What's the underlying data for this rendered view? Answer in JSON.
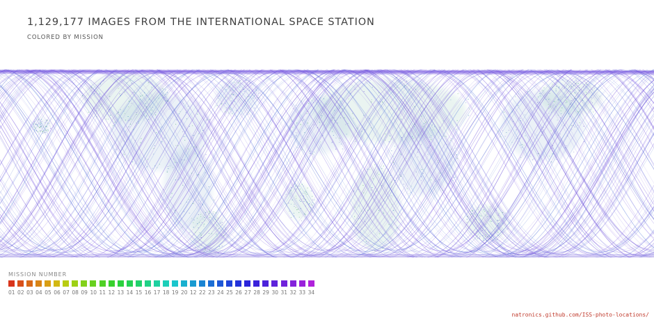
{
  "header": {
    "title": "1,129,177 IMAGES FROM THE INTERNATIONAL SPACE STATION",
    "subtitle": "COLORED BY MISSION"
  },
  "legend": {
    "title": "MISSION NUMBER",
    "items": [
      {
        "label": "01",
        "color": "#d9351c"
      },
      {
        "label": "02",
        "color": "#d9501a"
      },
      {
        "label": "03",
        "color": "#d96a18"
      },
      {
        "label": "04",
        "color": "#d98416"
      },
      {
        "label": "05",
        "color": "#d99e14"
      },
      {
        "label": "06",
        "color": "#d2b812"
      },
      {
        "label": "07",
        "color": "#b9cc12"
      },
      {
        "label": "08",
        "color": "#9ed116"
      },
      {
        "label": "09",
        "color": "#83d11a"
      },
      {
        "label": "10",
        "color": "#68d11f"
      },
      {
        "label": "11",
        "color": "#4fd125"
      },
      {
        "label": "12",
        "color": "#38d12d"
      },
      {
        "label": "13",
        "color": "#2bd13e"
      },
      {
        "label": "14",
        "color": "#25d154"
      },
      {
        "label": "15",
        "color": "#22d16c"
      },
      {
        "label": "16",
        "color": "#20d186"
      },
      {
        "label": "17",
        "color": "#1ed1a0"
      },
      {
        "label": "18",
        "color": "#1ccfb9"
      },
      {
        "label": "19",
        "color": "#1ac6cc"
      },
      {
        "label": "20",
        "color": "#18b0cf"
      },
      {
        "label": "12",
        "color": "#189ad1"
      },
      {
        "label": "22",
        "color": "#1a84d3"
      },
      {
        "label": "23",
        "color": "#1c6ed5"
      },
      {
        "label": "24",
        "color": "#1e58d7"
      },
      {
        "label": "25",
        "color": "#2044d9"
      },
      {
        "label": "26",
        "color": "#2332da"
      },
      {
        "label": "27",
        "color": "#2a24db"
      },
      {
        "label": "28",
        "color": "#3a22db"
      },
      {
        "label": "29",
        "color": "#4c22db"
      },
      {
        "label": "30",
        "color": "#5e22db"
      },
      {
        "label": "31",
        "color": "#7022db"
      },
      {
        "label": "32",
        "color": "#8422db"
      },
      {
        "label": "33",
        "color": "#9a22db"
      },
      {
        "label": "34",
        "color": "#b022db"
      }
    ]
  },
  "source": {
    "text": "natronics.github.com/ISS-photo-locations/"
  }
}
